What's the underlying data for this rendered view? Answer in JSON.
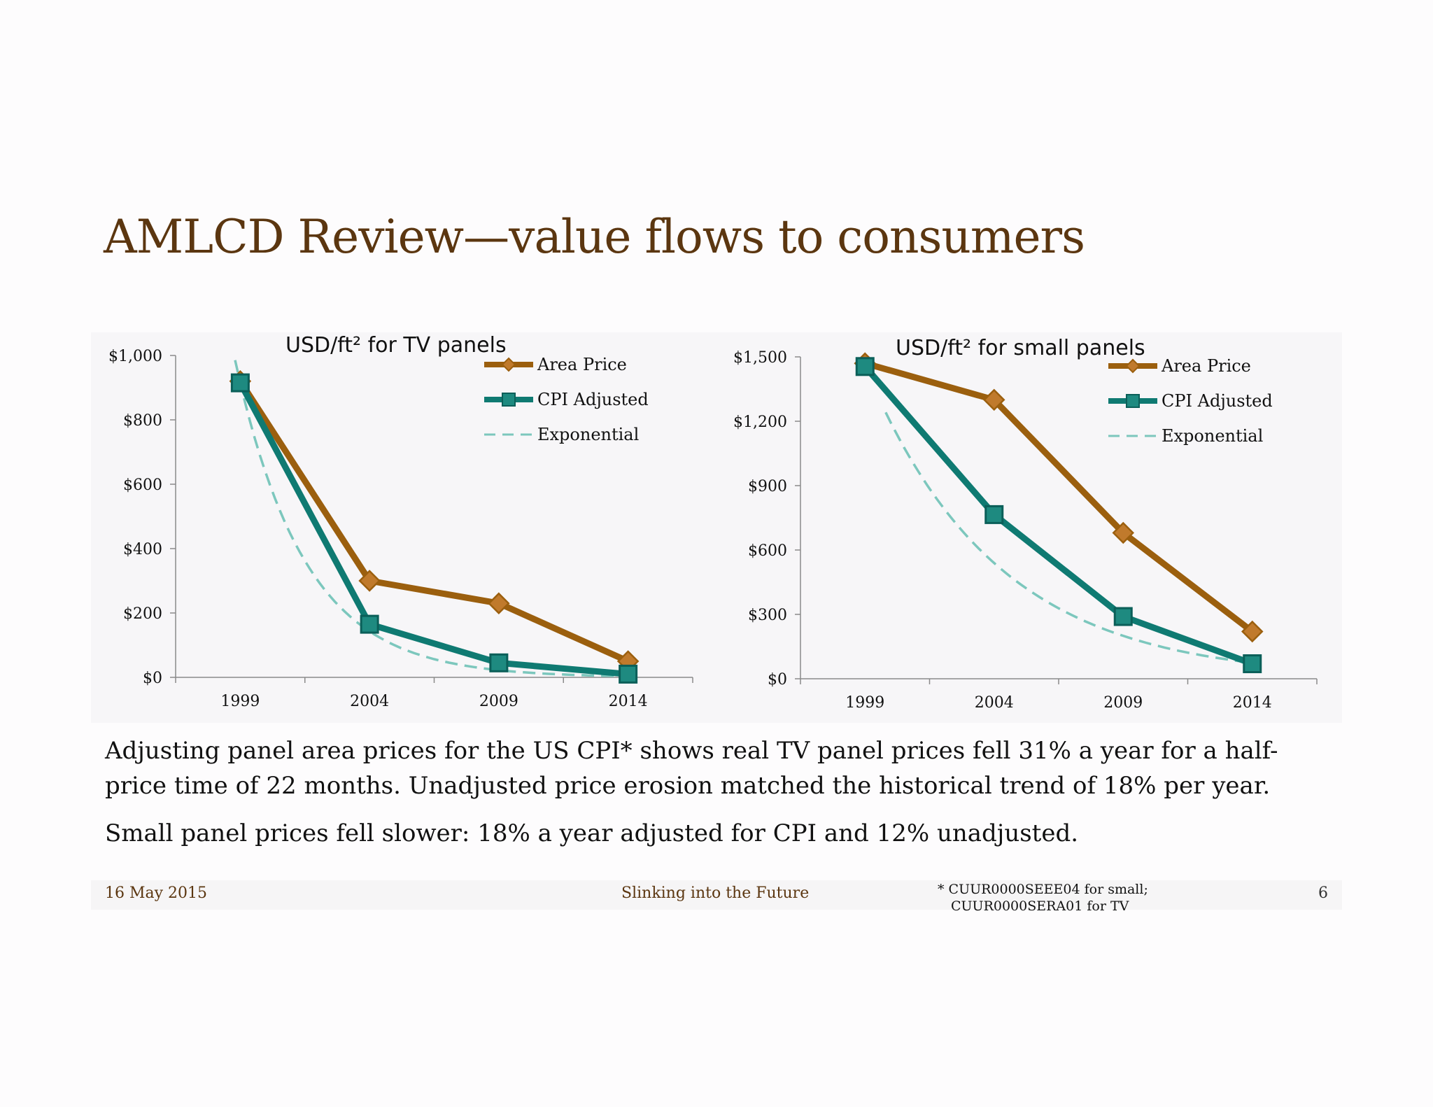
{
  "slide": {
    "title": "AMLCD Review—value flows to consumers",
    "paragraph1": "Adjusting panel area prices for the US CPI* shows real TV panel prices fell 31% a year for a half-price time of 22 months. Unadjusted price erosion matched the historical trend of 18% per year.",
    "paragraph2": "Small panel prices fell slower: 18% a year adjusted for CPI and 12% unadjusted."
  },
  "footer": {
    "date": "16 May 2015",
    "center": "Slinking into the Future",
    "footnote_line1": "* CUUR0000SEEE04 for small;",
    "footnote_line2": "CUUR0000SERA01 for TV",
    "page": "6"
  },
  "colors": {
    "area_price": "#9b5f0e",
    "area_price_marker": "#c07a2c",
    "cpi_adjusted": "#0f7a72",
    "cpi_marker": "#1e8a80",
    "exponential": "#7cc7bd",
    "title": "#5b3610"
  },
  "chart_data": [
    {
      "type": "line",
      "title": "USD/ft² for TV panels",
      "x": [
        1999,
        2004,
        2009,
        2014
      ],
      "xlim": [
        1996.5,
        2016.5
      ],
      "ylim": [
        0,
        1000
      ],
      "yticks": [
        0,
        200,
        400,
        600,
        800,
        1000
      ],
      "ytick_labels": [
        "$0",
        "$200",
        "$400",
        "$600",
        "$800",
        "$1,000"
      ],
      "xtick_labels": [
        "1999",
        "2004",
        "2009",
        "2014"
      ],
      "legend_position": "top-right",
      "series": [
        {
          "name": "Area Price",
          "values": [
            920,
            300,
            230,
            50
          ]
        },
        {
          "name": "CPI Adjusted",
          "values": [
            915,
            165,
            45,
            10
          ]
        },
        {
          "name": "Exponential",
          "fit": {
            "x0": 1999,
            "y0": 915,
            "annual_rate": 0.31,
            "x_start": 1998.8,
            "x_end": 2014.2
          }
        }
      ]
    },
    {
      "type": "line",
      "title": "USD/ft² for small panels",
      "x": [
        1999,
        2004,
        2009,
        2014
      ],
      "xlim": [
        1996.5,
        2016.5
      ],
      "ylim": [
        0,
        1500
      ],
      "yticks": [
        0,
        300,
        600,
        900,
        1200,
        1500
      ],
      "ytick_labels": [
        "$0",
        "$300",
        "$600",
        "$900",
        "$1,200",
        "$1,500"
      ],
      "xtick_labels": [
        "1999",
        "2004",
        "2009",
        "2014"
      ],
      "legend_position": "top-right",
      "series": [
        {
          "name": "Area Price",
          "values": [
            1470,
            1300,
            680,
            220
          ]
        },
        {
          "name": "CPI Adjusted",
          "values": [
            1455,
            765,
            290,
            70
          ]
        },
        {
          "name": "Exponential",
          "fit": {
            "x0": 1999,
            "y0": 1455,
            "annual_rate": 0.18,
            "x_start": 1999.8,
            "x_end": 2014.2
          }
        }
      ]
    }
  ]
}
